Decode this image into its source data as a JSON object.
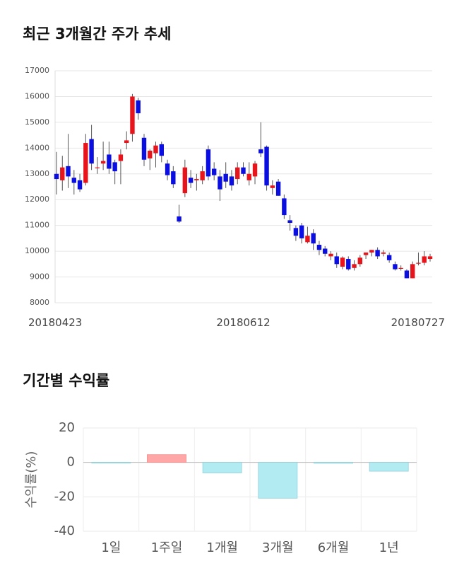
{
  "chart_data": [
    {
      "type": "candlestick",
      "title": "최근 3개월간 주가 추세",
      "categories": [
        "20180423",
        null,
        null,
        null,
        null,
        null,
        null,
        null,
        null,
        null,
        null,
        null,
        null,
        null,
        null,
        null,
        null,
        null,
        null,
        null,
        null,
        null,
        null,
        null,
        null,
        null,
        null,
        null,
        null,
        null,
        null,
        null,
        "20180612",
        null,
        null,
        null,
        null,
        null,
        null,
        null,
        null,
        null,
        null,
        null,
        null,
        null,
        null,
        null,
        null,
        null,
        null,
        null,
        null,
        null,
        null,
        null,
        null,
        null,
        null,
        null,
        null,
        null,
        null,
        null,
        "20180727"
      ],
      "open": [
        13000,
        12750,
        13300,
        12850,
        12750,
        12650,
        14350,
        13250,
        13400,
        13750,
        13450,
        13500,
        14200,
        14550,
        15850,
        14400,
        13600,
        13800,
        14150,
        13400,
        13100,
        11350,
        12250,
        12850,
        12750,
        12750,
        13950,
        13200,
        12900,
        13000,
        12900,
        12800,
        13250,
        12750,
        12900,
        13950,
        14050,
        12450,
        12700,
        12050,
        11200,
        10900,
        11000,
        10350,
        10700,
        10250,
        10100,
        9800,
        9800,
        9400,
        9700,
        9350,
        9500,
        9850,
        9950,
        10050,
        9900,
        9850,
        9500,
        9350,
        9250,
        8950,
        9550,
        9550,
        9700
      ],
      "high": [
        13850,
        13700,
        14550,
        13150,
        13000,
        14550,
        14900,
        13650,
        14250,
        14250,
        13550,
        13950,
        14650,
        16100,
        15950,
        14550,
        13950,
        14250,
        14250,
        13550,
        13300,
        11800,
        13550,
        13150,
        13000,
        13300,
        14100,
        13450,
        13150,
        13450,
        13150,
        13450,
        13450,
        13450,
        13500,
        15000,
        14100,
        12750,
        12800,
        12200,
        11400,
        11000,
        11100,
        10950,
        10850,
        10400,
        10200,
        10000,
        9950,
        9800,
        9800,
        9650,
        9850,
        9950,
        10050,
        10150,
        10050,
        9950,
        9600,
        9450,
        9300,
        9600,
        9950,
        10000,
        9900
      ],
      "low": [
        12200,
        12350,
        12450,
        12200,
        12300,
        12550,
        13150,
        13000,
        13150,
        13000,
        12600,
        12600,
        13950,
        14250,
        15100,
        13300,
        13150,
        13250,
        13450,
        12750,
        12450,
        11100,
        12100,
        12450,
        12350,
        12600,
        12750,
        12750,
        11950,
        12450,
        12350,
        12600,
        12900,
        12550,
        12600,
        13650,
        12350,
        12200,
        12150,
        11250,
        10800,
        10400,
        10300,
        10300,
        10050,
        9850,
        9800,
        9650,
        9350,
        9300,
        9250,
        9250,
        9400,
        9700,
        9800,
        9700,
        9800,
        9550,
        9250,
        9250,
        8950,
        8950,
        9450,
        9450,
        9600
      ],
      "close": [
        12800,
        13250,
        12900,
        12650,
        12400,
        14200,
        13400,
        13250,
        13500,
        13200,
        13100,
        13750,
        14300,
        16000,
        15350,
        13550,
        13900,
        14100,
        13700,
        12950,
        12600,
        11150,
        13250,
        12650,
        12800,
        13100,
        12900,
        12950,
        12400,
        12700,
        12550,
        13250,
        13000,
        13000,
        13400,
        13800,
        12550,
        12550,
        12150,
        11400,
        11100,
        10600,
        10500,
        10600,
        10300,
        10050,
        9900,
        9900,
        9500,
        9750,
        9300,
        9500,
        9750,
        9950,
        10050,
        9800,
        9950,
        9650,
        9300,
        9350,
        8950,
        9500,
        9550,
        9800,
        9800
      ],
      "up_color": "#e8141c",
      "down_color": "#0b0ee0",
      "ylim": [
        8000,
        17000
      ],
      "yticks": [
        8000,
        9000,
        10000,
        11000,
        12000,
        13000,
        14000,
        15000,
        16000,
        17000
      ],
      "grid": true
    },
    {
      "type": "bar",
      "title": "기간별 수익률",
      "ylabel": "수익률(%)",
      "categories": [
        "1일",
        "1주일",
        "1개월",
        "3개월",
        "6개월",
        "1년"
      ],
      "values": [
        -0.2,
        4.5,
        -6.1,
        -20.8,
        -0.5,
        -5.1
      ],
      "positive_color": "#ffa7a7",
      "negative_color": "#b3ebf3",
      "ylim": [
        -40,
        20
      ],
      "yticks": [
        -40,
        -20,
        0,
        20
      ],
      "grid": true
    }
  ]
}
